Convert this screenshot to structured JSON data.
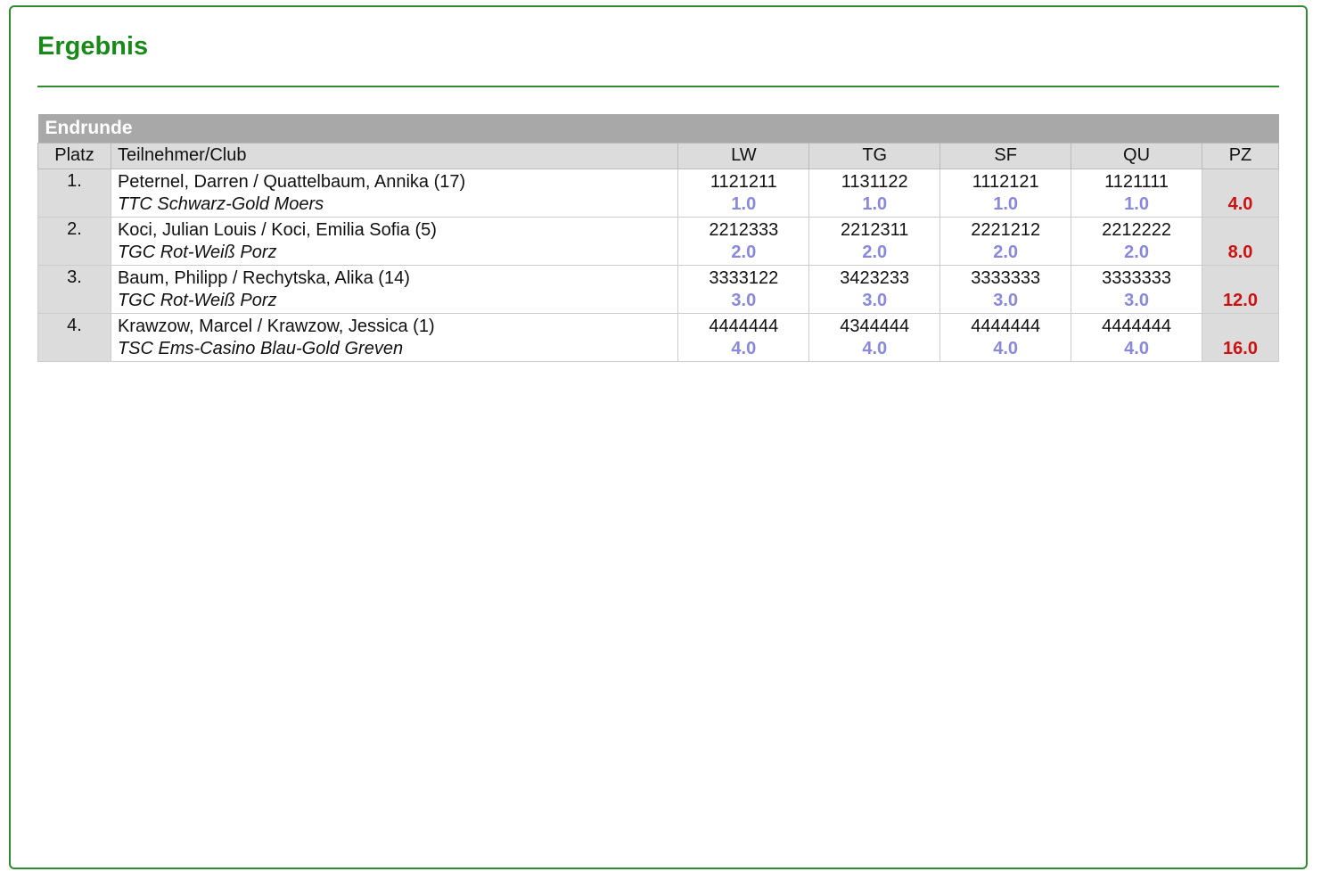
{
  "title": "Ergebnis",
  "round": "Endrunde",
  "columns": [
    "Platz",
    "Teilnehmer/Club",
    "LW",
    "TG",
    "SF",
    "QU",
    "PZ"
  ],
  "colors": {
    "accent": "#198a19",
    "place_score": "#8888dd",
    "total": "#cc1111"
  },
  "rows": [
    {
      "platz": "1.",
      "name": "Peternel, Darren / Quattelbaum, Annika (17)",
      "club": "TTC Schwarz-Gold Moers",
      "scores": [
        {
          "marks": "1121211",
          "place": "1.0"
        },
        {
          "marks": "1131122",
          "place": "1.0"
        },
        {
          "marks": "1112121",
          "place": "1.0"
        },
        {
          "marks": "1121111",
          "place": "1.0"
        }
      ],
      "pz": "4.0"
    },
    {
      "platz": "2.",
      "name": "Koci, Julian Louis / Koci, Emilia Sofia (5)",
      "club": "TGC Rot-Weiß Porz",
      "scores": [
        {
          "marks": "2212333",
          "place": "2.0"
        },
        {
          "marks": "2212311",
          "place": "2.0"
        },
        {
          "marks": "2221212",
          "place": "2.0"
        },
        {
          "marks": "2212222",
          "place": "2.0"
        }
      ],
      "pz": "8.0"
    },
    {
      "platz": "3.",
      "name": "Baum, Philipp / Rechytska, Alika (14)",
      "club": "TGC Rot-Weiß Porz",
      "scores": [
        {
          "marks": "3333122",
          "place": "3.0"
        },
        {
          "marks": "3423233",
          "place": "3.0"
        },
        {
          "marks": "3333333",
          "place": "3.0"
        },
        {
          "marks": "3333333",
          "place": "3.0"
        }
      ],
      "pz": "12.0"
    },
    {
      "platz": "4.",
      "name": "Krawzow, Marcel / Krawzow, Jessica (1)",
      "club": "TSC Ems-Casino Blau-Gold Greven",
      "scores": [
        {
          "marks": "4444444",
          "place": "4.0"
        },
        {
          "marks": "4344444",
          "place": "4.0"
        },
        {
          "marks": "4444444",
          "place": "4.0"
        },
        {
          "marks": "4444444",
          "place": "4.0"
        }
      ],
      "pz": "16.0"
    }
  ]
}
